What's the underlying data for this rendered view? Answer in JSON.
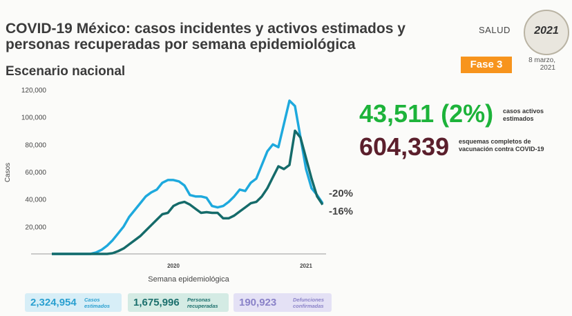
{
  "header": {
    "title": "COVID-19 México: casos incidentes y activos estimados y personas recuperadas por semana epidemiológica",
    "subtitle": "Escenario nacional",
    "logo": "SALUD",
    "badge": "2021",
    "phase": "Fase 3",
    "date": "8 marzo, 2021"
  },
  "chart_data": {
    "type": "line",
    "xlabel": "Semana epidemiológica",
    "ylabel": "Casos",
    "categories": [
      null,
      null,
      null,
      null,
      null,
      null,
      null,
      null,
      null,
      null,
      null,
      null,
      null,
      null,
      null,
      null,
      null,
      null,
      null,
      null,
      null,
      null,
      "2020",
      null,
      null,
      null,
      null,
      null,
      null,
      null,
      null,
      null,
      null,
      null,
      null,
      null,
      null,
      null,
      null,
      null,
      null,
      null,
      null,
      null,
      null,
      null,
      "2021",
      null,
      null,
      null
    ],
    "series": [
      {
        "color": "#1ea9dd",
        "values": [
          0,
          0,
          0,
          0,
          0,
          0,
          0,
          0,
          1000,
          3000,
          6000,
          10000,
          15000,
          20000,
          27000,
          32000,
          37000,
          42000,
          45000,
          47000,
          52000,
          54000,
          54000,
          53000,
          50000,
          43000,
          42000,
          42000,
          41000,
          35000,
          34000,
          35000,
          38000,
          42000,
          47000,
          46000,
          52000,
          55000,
          65000,
          75000,
          80000,
          78000,
          95000,
          112000,
          108000,
          85000,
          62000,
          48000,
          43000,
          37000
        ]
      },
      {
        "color": "#156b6a",
        "values": [
          0,
          0,
          0,
          0,
          0,
          0,
          0,
          0,
          0,
          0,
          0,
          500,
          2000,
          4000,
          7000,
          10000,
          13000,
          17000,
          21000,
          25000,
          29000,
          30000,
          35000,
          37000,
          38000,
          36000,
          33000,
          30000,
          30500,
          30000,
          30000,
          26000,
          26000,
          28000,
          31000,
          34000,
          37000,
          38000,
          42000,
          48000,
          56000,
          64000,
          62000,
          65000,
          90000,
          85000,
          70000,
          55000,
          42000,
          36000
        ]
      }
    ],
    "annotations": [
      {
        "text": "-20%",
        "color": "#156b6a"
      },
      {
        "text": "-16%",
        "color": "#1ea9dd"
      }
    ],
    "ylim": [
      0,
      120000
    ],
    "yticks": [
      {
        "value": 20000,
        "label": "20,000"
      },
      {
        "value": 40000,
        "label": "40,000"
      },
      {
        "value": 60000,
        "label": "60,000"
      },
      {
        "value": 80000,
        "label": "80,000"
      },
      {
        "value": 100000,
        "label": "100,000"
      },
      {
        "value": 120000,
        "label": "120,000"
      }
    ]
  },
  "stats": [
    {
      "value": "43,511 (2%)",
      "label": "casos activos estimados",
      "color": "#1db33a"
    },
    {
      "value": "604,339",
      "label": "esquemas completos de vacunación contra COVID-19",
      "color": "#5b1f2c"
    }
  ],
  "summary": [
    {
      "value": "2,324,954",
      "label": "Casos estimados",
      "color": "#2aa0d0",
      "bg": "#d7eef7"
    },
    {
      "value": "1,675,996",
      "label": "Personas recuperadas",
      "color": "#1b6f6c",
      "bg": "#d4ebe4"
    },
    {
      "value": "190,923",
      "label": "Defunciones confirmadas",
      "color": "#8a82c8",
      "bg": "#e4e1f5"
    }
  ]
}
